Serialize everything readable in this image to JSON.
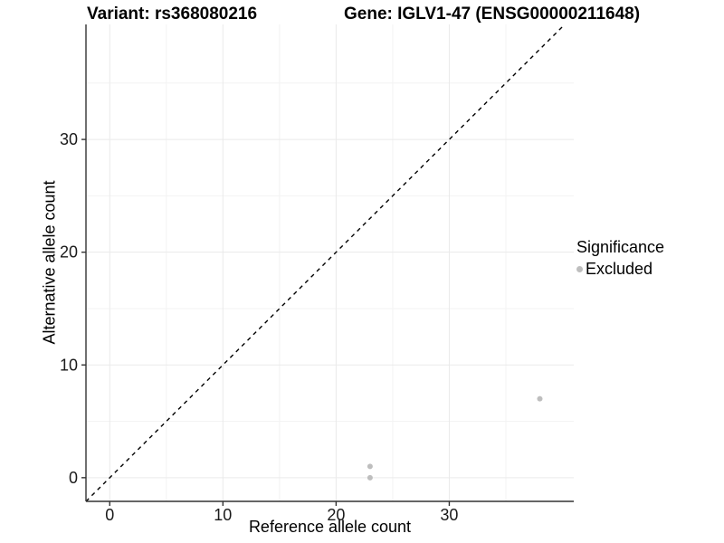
{
  "header": {
    "title_left": "Variant: rs368080216",
    "title_right": "Gene: IGLV1-47 (ENSG00000211648)"
  },
  "chart_data": {
    "type": "scatter",
    "title": "Variant: rs368080216    Gene: IGLV1-47 (ENSG00000211648)",
    "xlabel": "Reference allele count",
    "ylabel": "Alternative allele count",
    "xlim": [
      -2.1,
      41.0
    ],
    "ylim": [
      -2.1,
      40.2
    ],
    "x_ticks": [
      0,
      10,
      20,
      30
    ],
    "y_ticks": [
      0,
      10,
      20,
      30
    ],
    "x_minor_ticks": [
      5,
      15,
      25,
      35
    ],
    "y_minor_ticks": [
      5,
      15,
      25,
      35
    ],
    "grid": true,
    "abline": {
      "slope": 1,
      "intercept": 0,
      "style": "dashed"
    },
    "series": [
      {
        "name": "Excluded",
        "color": "#bebebe",
        "points": [
          [
            23,
            0
          ],
          [
            23,
            1
          ],
          [
            38,
            7
          ]
        ]
      }
    ],
    "legend": {
      "position": "right",
      "title": "Significance",
      "entries": [
        {
          "label": "Excluded",
          "color": "#bebebe"
        }
      ]
    },
    "colors": {
      "grid_major": "#eaeaea",
      "grid_minor": "#f3f3f3",
      "axis_line": "#333333",
      "tick_mark": "#333333",
      "tick_label": "#1a1a1a",
      "dashed_line": "#000000",
      "background": "#ffffff"
    }
  }
}
